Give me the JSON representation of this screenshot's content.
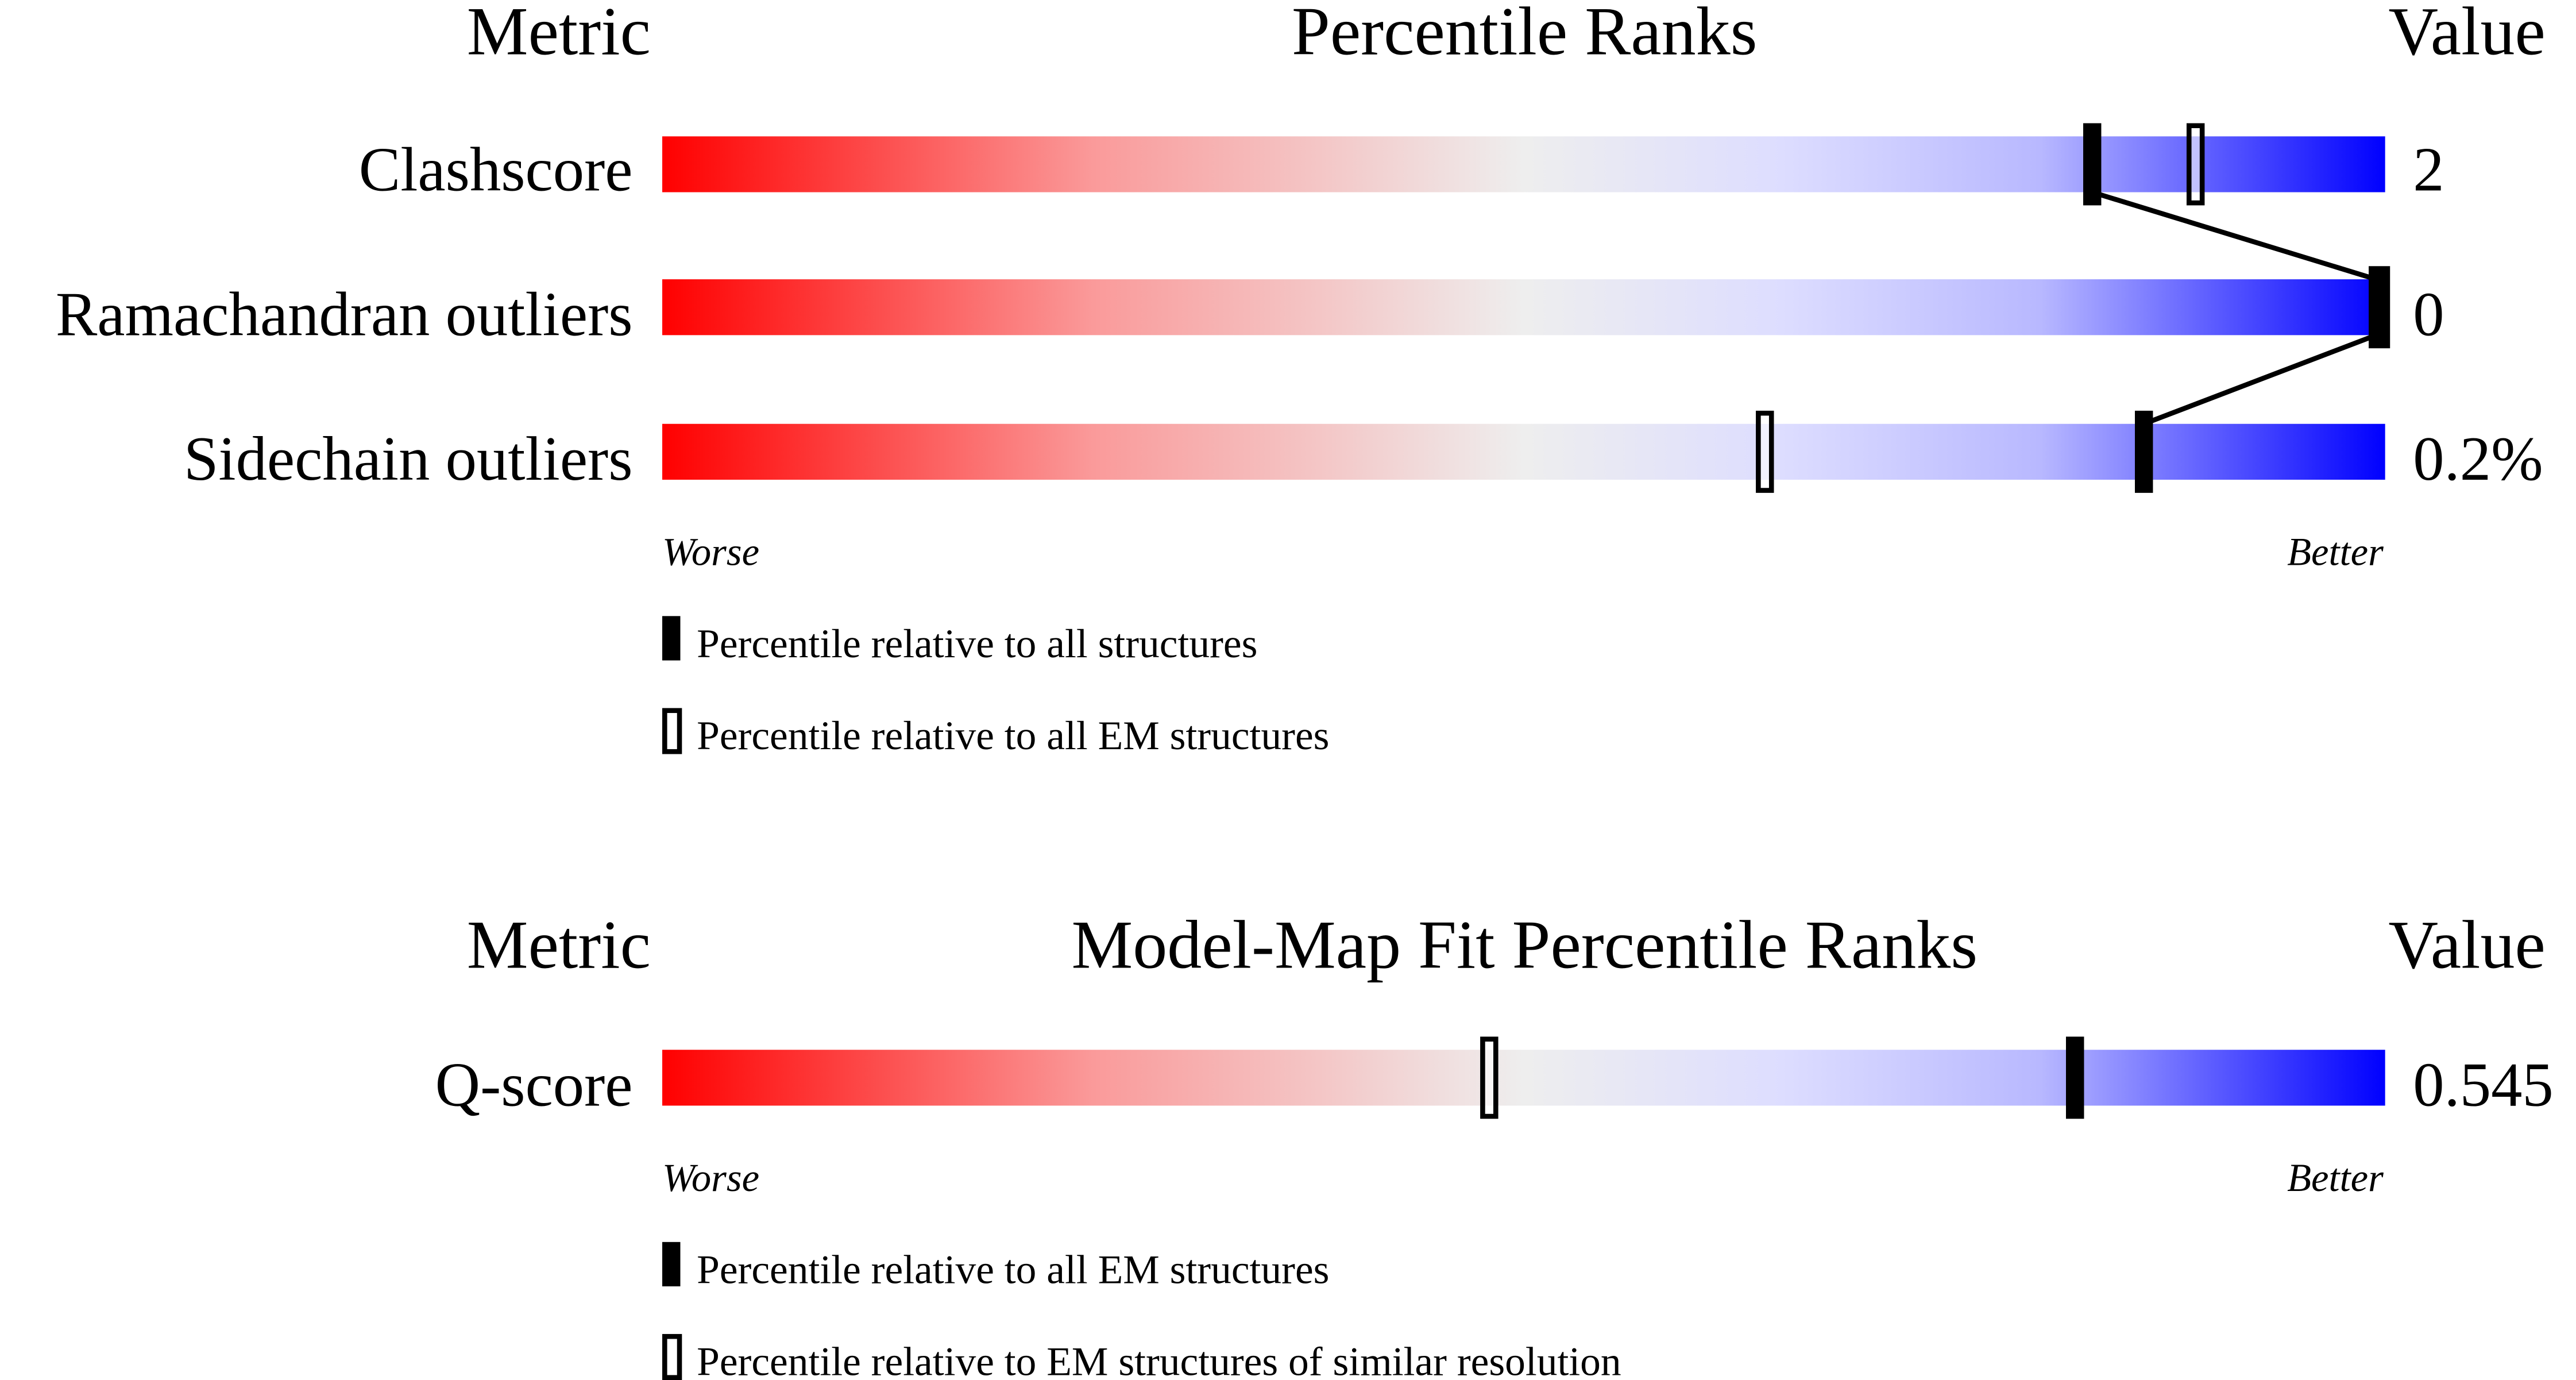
{
  "chart_data": [
    {
      "type": "percentile-bars",
      "headers": {
        "metric": "Metric",
        "title": "Percentile Ranks",
        "value": "Value"
      },
      "metrics": [
        {
          "name": "Clashscore",
          "value": "2",
          "percentile_all": 83,
          "percentile_em": 89
        },
        {
          "name": "Ramachandran outliers",
          "value": "0",
          "percentile_all": 100,
          "percentile_em": 100
        },
        {
          "name": "Sidechain outliers",
          "value": "0.2%",
          "percentile_all": 86,
          "percentile_em": 64
        }
      ],
      "xlim": [
        0,
        100
      ],
      "axis_labels": {
        "left": "Worse",
        "right": "Better"
      },
      "legend": [
        {
          "marker": "filled",
          "label": "Percentile relative to all structures"
        },
        {
          "marker": "open",
          "label": "Percentile relative to all EM structures"
        }
      ],
      "connect_filled_markers": true
    },
    {
      "type": "percentile-bars",
      "headers": {
        "metric": "Metric",
        "title": "Model-Map Fit Percentile Ranks",
        "value": "Value"
      },
      "metrics": [
        {
          "name": "Q-score",
          "value": "0.545",
          "percentile_all": 82,
          "percentile_em": 48
        }
      ],
      "xlim": [
        0,
        100
      ],
      "axis_labels": {
        "left": "Worse",
        "right": "Better"
      },
      "legend": [
        {
          "marker": "filled",
          "label": "Percentile relative to all EM structures"
        },
        {
          "marker": "open",
          "label": "Percentile relative to EM structures of similar resolution"
        }
      ],
      "connect_filled_markers": false
    }
  ],
  "colors": {
    "worse": "#ff0000",
    "mid": "#eeeeee",
    "light_blue": "#ddddff",
    "better": "#0000ff",
    "marker": "#000000"
  }
}
